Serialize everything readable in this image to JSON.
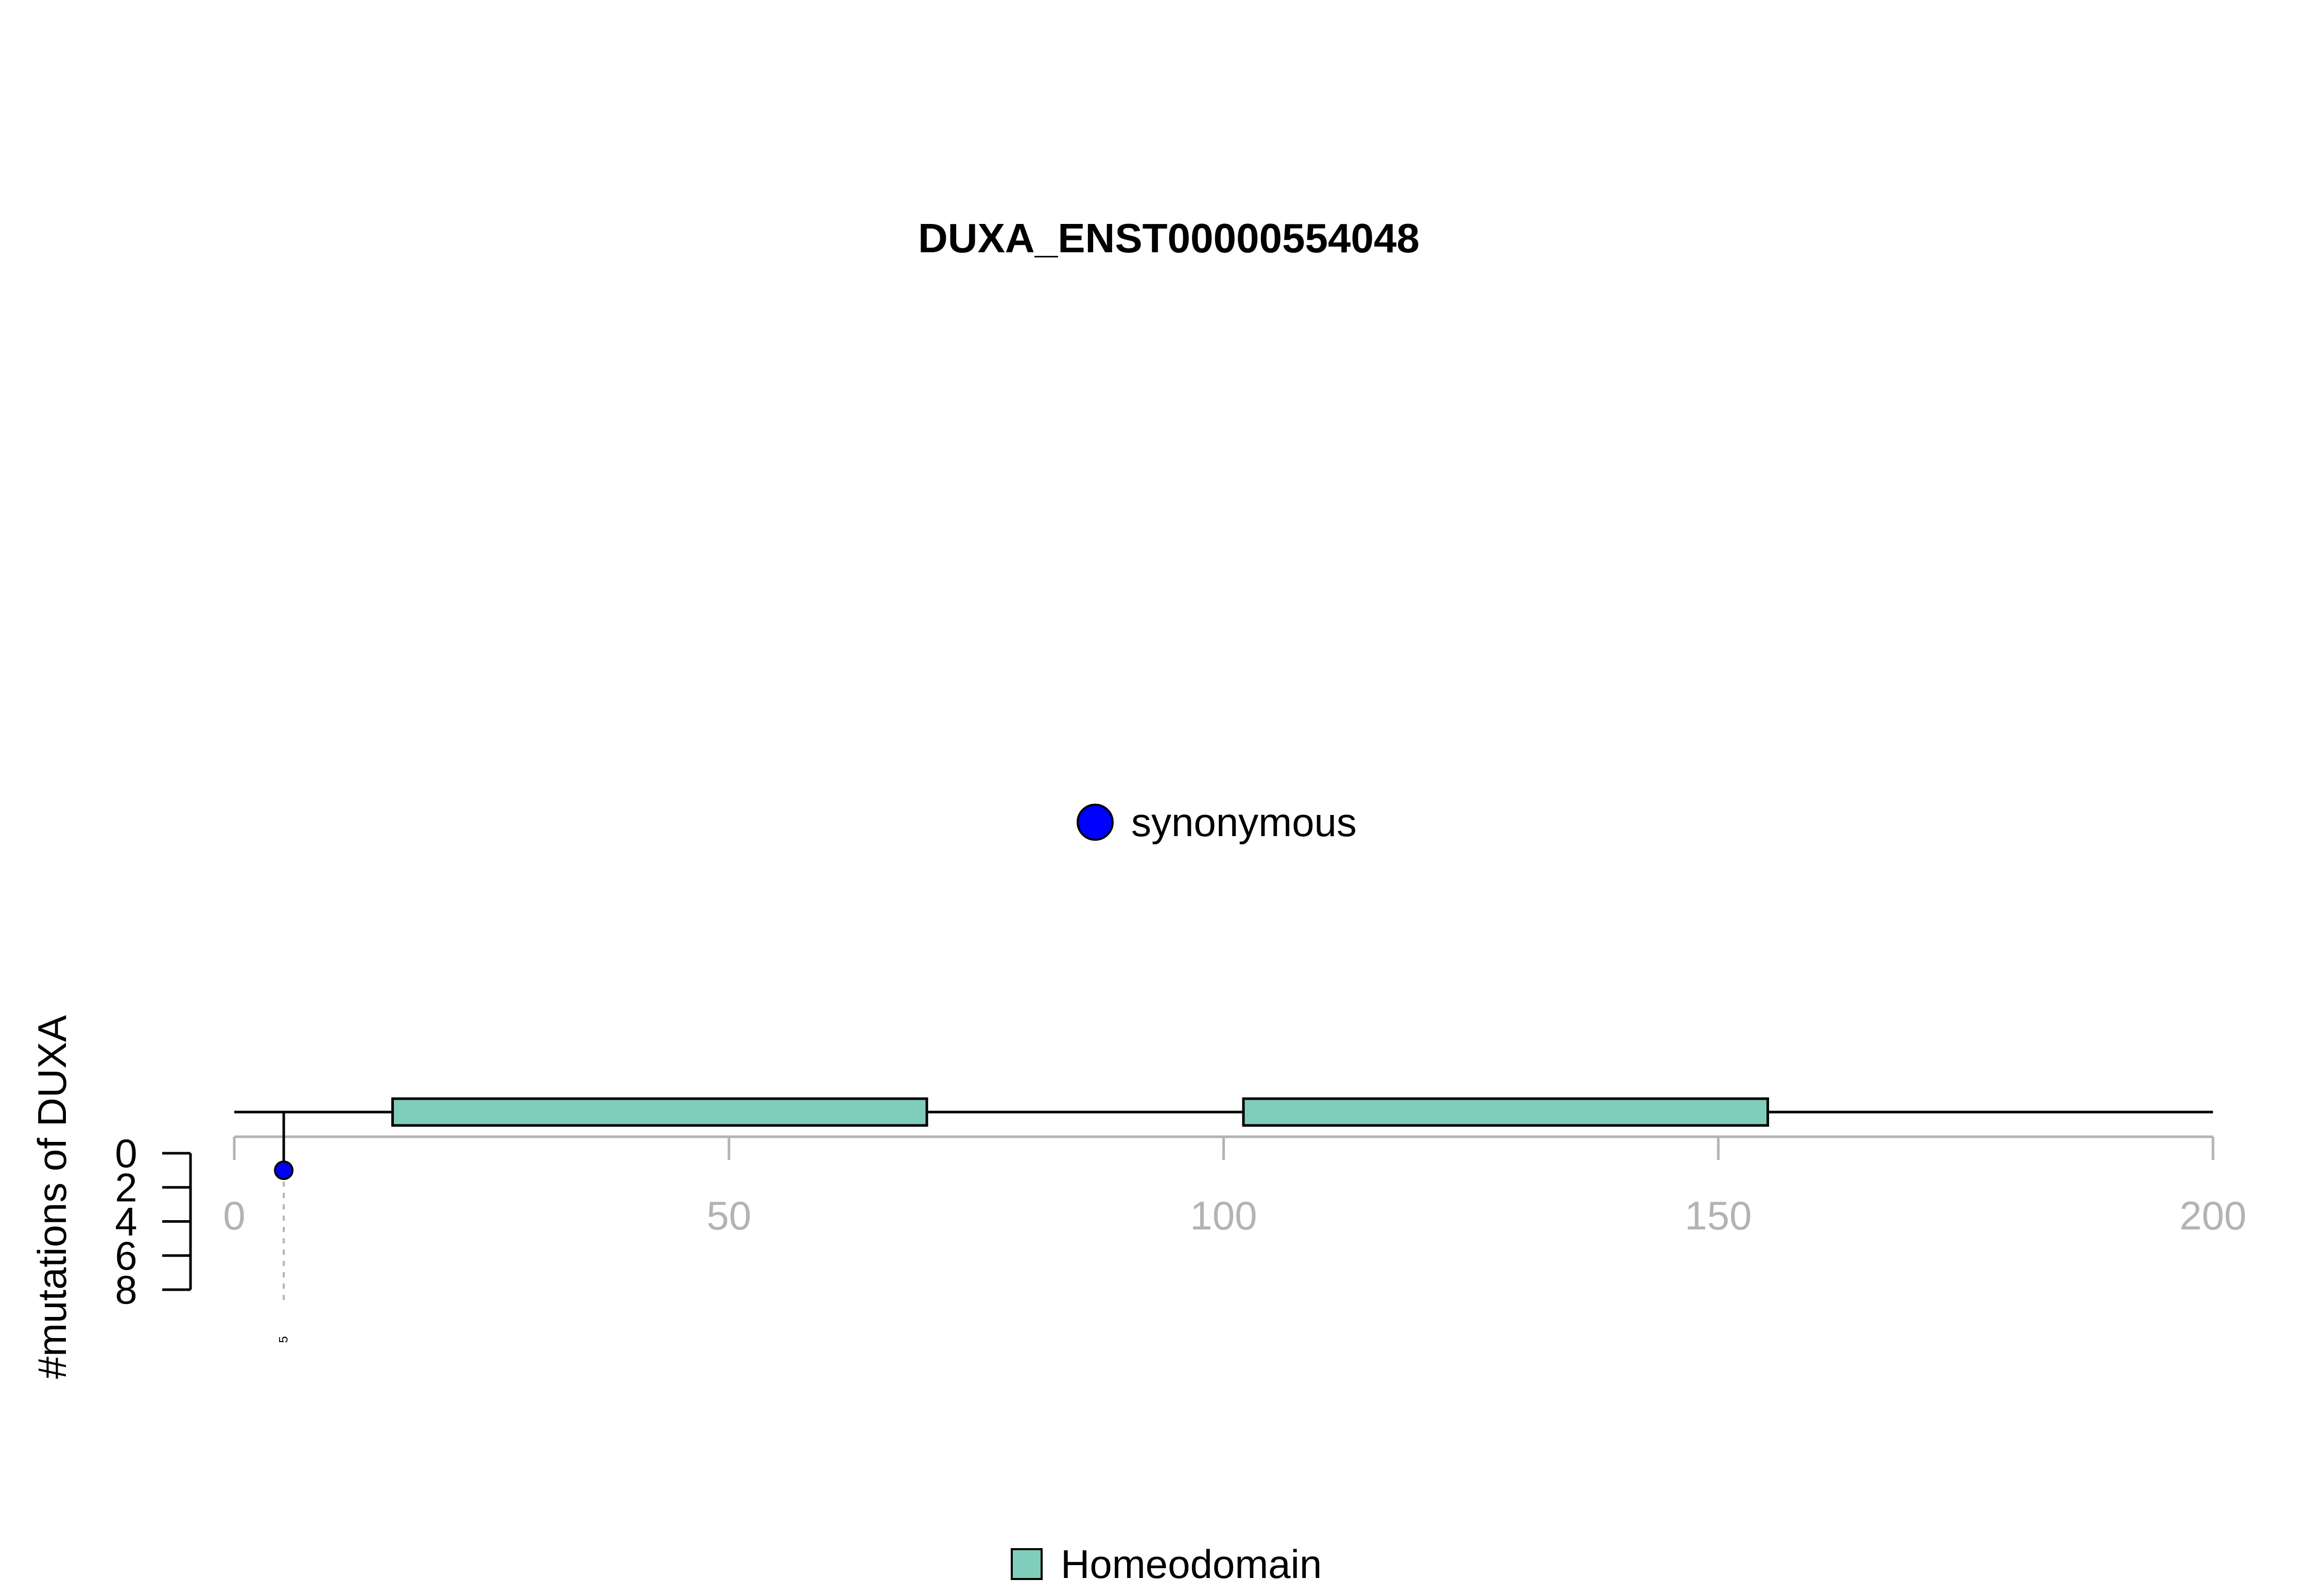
{
  "chart_data": {
    "type": "lollipop",
    "title": "DUXA_ENST00000554048",
    "ylabel": "#mutations of DUXA",
    "xlim": [
      0,
      200
    ],
    "x_ticks": [
      "0",
      "50",
      "100",
      "150",
      "200"
    ],
    "ylim": [
      0,
      8
    ],
    "y_ticks": [
      "0",
      "2",
      "4",
      "6",
      "8"
    ],
    "domains": [
      {
        "name": "Homeodomain",
        "start": 16,
        "end": 70
      },
      {
        "name": "Homeodomain",
        "start": 102,
        "end": 155
      }
    ],
    "mutations": [
      {
        "position": 5,
        "count": 1,
        "type": "synonymous",
        "label": "5"
      }
    ],
    "legend_mutation_types": [
      {
        "label": "synonymous",
        "color": "#0000FF"
      }
    ],
    "legend_domains": [
      {
        "label": "Homeodomain",
        "color": "#7FCDBB"
      }
    ]
  }
}
